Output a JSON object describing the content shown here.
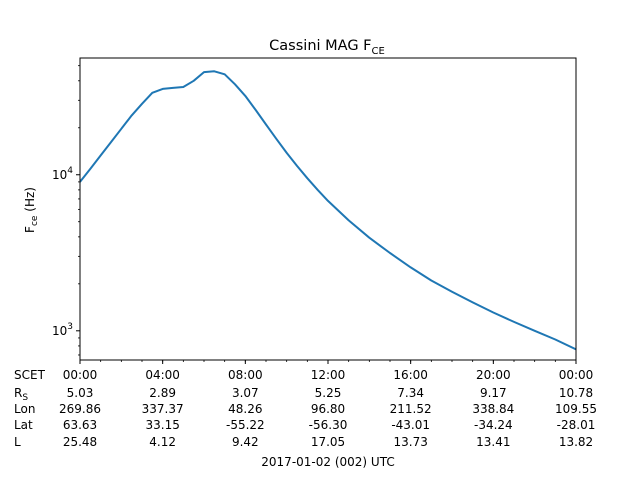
{
  "chart_data": {
    "type": "line",
    "title": "Cassini MAG F",
    "title_sub": "CE",
    "ylabel": "F",
    "ylabel_sub": "ce",
    "ylabel_unit": "(Hz)",
    "yscale": "log",
    "ylim": [
      650,
      56000
    ],
    "xlim": [
      0,
      24
    ],
    "y_ticks": [
      {
        "value": 1000,
        "base": "10",
        "exp": "3"
      },
      {
        "value": 10000,
        "base": "10",
        "exp": "4"
      }
    ],
    "x_ticks": [
      {
        "value": 0,
        "label": "00:00"
      },
      {
        "value": 4,
        "label": "04:00"
      },
      {
        "value": 8,
        "label": "08:00"
      },
      {
        "value": 12,
        "label": "12:00"
      },
      {
        "value": 16,
        "label": "16:00"
      },
      {
        "value": 20,
        "label": "20:00"
      },
      {
        "value": 24,
        "label": "00:00"
      }
    ],
    "x_minor_step": 1,
    "xlabel": "2017-01-02 (002) UTC",
    "line_color": "#1f77b4",
    "series": [
      {
        "x": [
          0,
          0.5,
          1,
          1.5,
          2,
          2.5,
          3,
          3.5,
          4,
          4.5,
          5,
          5.5,
          6,
          6.5,
          7,
          7.5,
          8,
          8.5,
          9,
          9.5,
          10,
          10.5,
          11,
          11.5,
          12,
          13,
          14,
          15,
          16,
          17,
          18,
          19,
          20,
          21,
          22,
          23,
          24
        ],
        "y": [
          9000,
          10900,
          13300,
          16200,
          19700,
          24000,
          28500,
          33500,
          35500,
          36000,
          36500,
          40000,
          45500,
          46000,
          44000,
          38000,
          32000,
          26000,
          21000,
          17000,
          13800,
          11400,
          9500,
          8000,
          6800,
          5100,
          3950,
          3150,
          2550,
          2100,
          1780,
          1520,
          1310,
          1140,
          1000,
          880,
          760
        ]
      }
    ],
    "ephemeris": {
      "rows": [
        {
          "label": "SCET",
          "label_sub": "",
          "values": [
            "00:00",
            "04:00",
            "08:00",
            "12:00",
            "16:00",
            "20:00",
            "00:00"
          ]
        },
        {
          "label": "R",
          "label_sub": "S",
          "values": [
            "5.03",
            "2.89",
            "3.07",
            "5.25",
            "7.34",
            "9.17",
            "10.78"
          ]
        },
        {
          "label": "Lon",
          "label_sub": "",
          "values": [
            "269.86",
            "337.37",
            "48.26",
            "96.80",
            "211.52",
            "338.84",
            "109.55"
          ]
        },
        {
          "label": "Lat",
          "label_sub": "",
          "values": [
            "63.63",
            "33.15",
            "-55.22",
            "-56.30",
            "-43.01",
            "-34.24",
            "-28.01"
          ]
        },
        {
          "label": "L",
          "label_sub": "",
          "values": [
            "25.48",
            "4.12",
            "9.42",
            "17.05",
            "13.73",
            "13.41",
            "13.82"
          ]
        }
      ]
    }
  }
}
